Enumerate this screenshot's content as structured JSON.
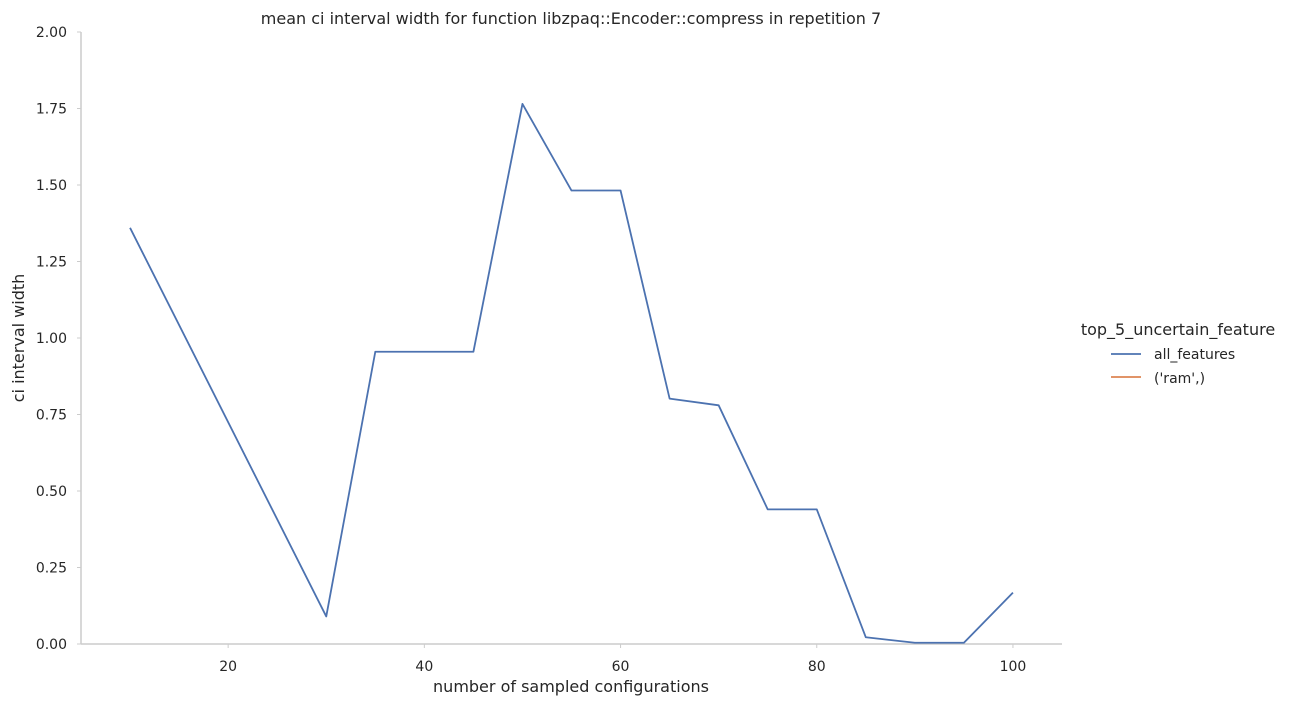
{
  "chart_data": {
    "type": "line",
    "title": "mean ci interval width for function libzpaq::Encoder::compress in repetition 7",
    "xlabel": "number of sampled configurations",
    "ylabel": "ci interval width",
    "xlim": [
      5,
      105
    ],
    "ylim": [
      0,
      2.0
    ],
    "xticks": [
      20,
      40,
      60,
      80,
      100
    ],
    "yticks": [
      0.0,
      0.25,
      0.5,
      0.75,
      1.0,
      1.25,
      1.5,
      1.75,
      2.0
    ],
    "ytick_labels": [
      "0.00",
      "0.25",
      "0.50",
      "0.75",
      "1.00",
      "1.25",
      "1.50",
      "1.75",
      "2.00"
    ],
    "xtick_labels": [
      "20",
      "40",
      "60",
      "80",
      "100"
    ],
    "grid": false,
    "legend": {
      "title": "top_5_uncertain_feature",
      "placement": "right",
      "entries": [
        "all_features",
        "('ram',)"
      ]
    },
    "series": [
      {
        "name": "all_features",
        "color": "#4c72b0",
        "x": [
          10,
          30,
          35,
          45,
          50,
          55,
          60,
          65,
          70,
          75,
          80,
          85,
          90,
          95,
          100
        ],
        "y": [
          1.36,
          0.09,
          0.955,
          0.955,
          1.765,
          1.482,
          1.482,
          0.802,
          0.78,
          0.44,
          0.44,
          0.022,
          0.004,
          0.004,
          0.168
        ]
      },
      {
        "name": "('ram',)",
        "color": "#dd8452",
        "x": [],
        "y": []
      }
    ]
  }
}
